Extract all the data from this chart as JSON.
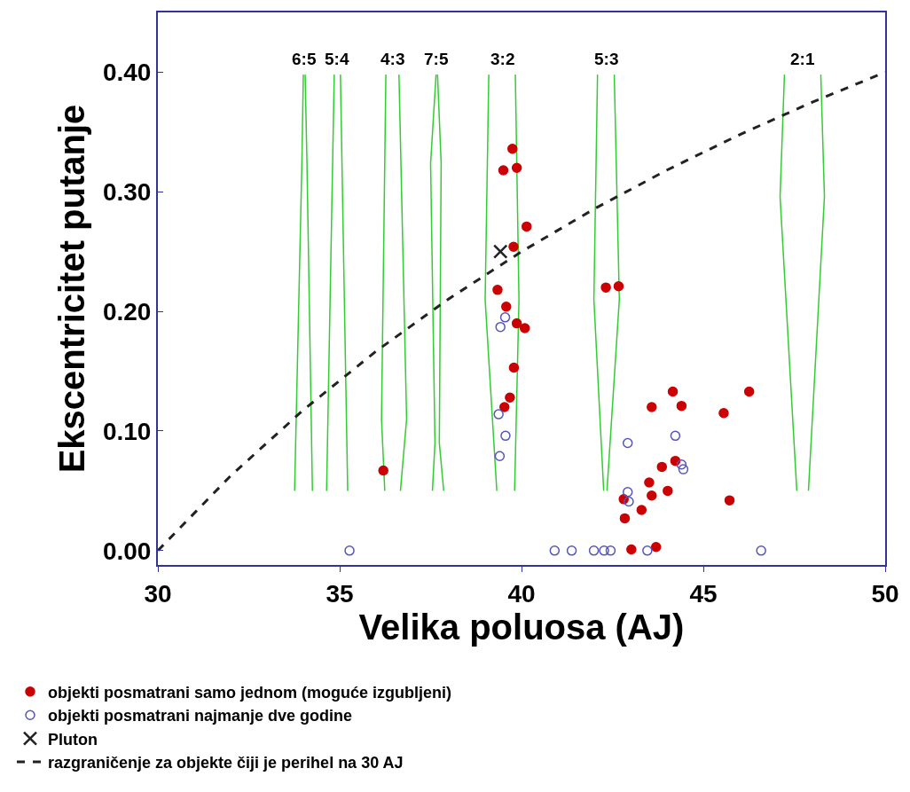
{
  "chart_data": {
    "type": "scatter",
    "xlabel": "Velika poluosa (AJ)",
    "ylabel": "Ekscentricitet putanje",
    "xlim": [
      30,
      50
    ],
    "ylim": [
      -0.012,
      0.45
    ],
    "xticks": [
      30,
      35,
      40,
      45,
      50
    ],
    "yticks": [
      {
        "value": 0,
        "label": "0.00"
      },
      {
        "value": 0.1,
        "label": "0.10"
      },
      {
        "value": 0.2,
        "label": "0.20"
      },
      {
        "value": 0.3,
        "label": "0.30"
      },
      {
        "value": 0.4,
        "label": "0.40"
      }
    ],
    "legend": "bottom",
    "series": [
      {
        "type": "line",
        "color": "#33cc33",
        "x": [
          34.0,
          33.96,
          33.76
        ],
        "values": [
          0.398,
          0.324,
          0.05
        ]
      },
      {
        "type": "line",
        "color": "#33cc33",
        "x": [
          34.05,
          34.1,
          34.25
        ],
        "values": [
          0.398,
          0.324,
          0.05
        ]
      },
      {
        "type": "line",
        "color": "#33cc33",
        "x": [
          34.85,
          34.64
        ],
        "values": [
          0.398,
          0.05
        ]
      },
      {
        "type": "line",
        "color": "#33cc33",
        "x": [
          35.02,
          35.22
        ],
        "values": [
          0.398,
          0.05
        ]
      },
      {
        "type": "line",
        "color": "#33cc33",
        "x": [
          36.27,
          36.15,
          36.24
        ],
        "values": [
          0.398,
          0.11,
          0.05
        ]
      },
      {
        "type": "line",
        "color": "#33cc33",
        "x": [
          36.63,
          36.84,
          36.67
        ],
        "values": [
          0.398,
          0.11,
          0.05
        ]
      },
      {
        "type": "line",
        "color": "#33cc33",
        "x": [
          37.65,
          37.5,
          37.62,
          37.55
        ],
        "values": [
          0.398,
          0.324,
          0.09,
          0.05
        ]
      },
      {
        "type": "line",
        "color": "#33cc33",
        "x": [
          37.69,
          37.79,
          37.74,
          37.86
        ],
        "values": [
          0.398,
          0.324,
          0.09,
          0.05
        ]
      },
      {
        "type": "line",
        "color": "#33cc33",
        "x": [
          39.1,
          39.0,
          39.32
        ],
        "values": [
          0.398,
          0.21,
          0.05
        ]
      },
      {
        "type": "line",
        "color": "#33cc33",
        "x": [
          39.83,
          39.93,
          39.81
        ],
        "values": [
          0.398,
          0.21,
          0.05
        ]
      },
      {
        "type": "line",
        "color": "#33cc33",
        "x": [
          42.09,
          41.99,
          42.26
        ],
        "values": [
          0.398,
          0.21,
          0.05
        ]
      },
      {
        "type": "line",
        "color": "#33cc33",
        "x": [
          42.55,
          42.69,
          42.35
        ],
        "values": [
          0.398,
          0.21,
          0.05
        ]
      },
      {
        "type": "line",
        "color": "#33cc33",
        "x": [
          47.23,
          47.11,
          47.57
        ],
        "values": [
          0.398,
          0.296,
          0.05
        ]
      },
      {
        "type": "line",
        "color": "#33cc33",
        "x": [
          48.23,
          48.33,
          47.89
        ],
        "values": [
          0.398,
          0.296,
          0.05
        ]
      },
      {
        "name": "objekti posmatrani samo jednom (moguće izgubljeni)",
        "marker": "circle",
        "color": "#cc0000",
        "x": [
          39.75,
          39.5,
          39.87,
          40.14,
          39.78,
          39.34,
          39.58,
          39.87,
          40.09,
          39.79,
          39.68,
          39.53,
          36.2,
          42.32,
          42.67,
          42.81,
          42.84,
          44.16,
          43.58,
          44.4,
          45.56,
          46.26,
          43.86,
          44.23,
          43.51,
          43.58,
          44.02,
          43.3,
          45.72,
          43.02,
          43.7
        ],
        "values": [
          0.336,
          0.318,
          0.32,
          0.271,
          0.254,
          0.218,
          0.204,
          0.19,
          0.186,
          0.153,
          0.128,
          0.12,
          0.067,
          0.22,
          0.221,
          0.043,
          0.027,
          0.133,
          0.12,
          0.121,
          0.115,
          0.133,
          0.07,
          0.075,
          0.057,
          0.046,
          0.05,
          0.034,
          0.042,
          0.001,
          0.003
        ]
      },
      {
        "name": "objekti posmatrani najmanje dve godine",
        "marker": "circle-open",
        "color": "#5555bb",
        "x": [
          39.42,
          39.55,
          39.37,
          39.56,
          39.4,
          35.27,
          40.91,
          41.38,
          41.99,
          42.27,
          42.45,
          42.92,
          42.92,
          42.95,
          44.23,
          44.4,
          44.45,
          43.46,
          46.59
        ],
        "values": [
          0.187,
          0.195,
          0.114,
          0.096,
          0.079,
          0.0,
          0.0,
          0.0,
          0.0,
          0.0,
          0.0,
          0.09,
          0.049,
          0.041,
          0.096,
          0.072,
          0.068,
          0.0,
          0.0
        ]
      },
      {
        "name": "Pluton",
        "marker": "cross",
        "color": "#222222",
        "x": [
          39.42
        ],
        "values": [
          0.25
        ]
      },
      {
        "name": "razgraničenje za objekte čiji je perihel na 30 AJ",
        "type": "line",
        "line_style": "dashed",
        "color": "#222222",
        "x": [
          30,
          32,
          34,
          36,
          38,
          40,
          42,
          44,
          46,
          48,
          50
        ],
        "values": [
          0,
          0.0625,
          0.1176,
          0.1667,
          0.2105,
          0.25,
          0.2857,
          0.3182,
          0.3478,
          0.375,
          0.4
        ]
      }
    ],
    "annotations": [
      "6:5",
      "5:4",
      "4:3",
      "7:5",
      "3:2",
      "5:3",
      "2:1"
    ]
  }
}
